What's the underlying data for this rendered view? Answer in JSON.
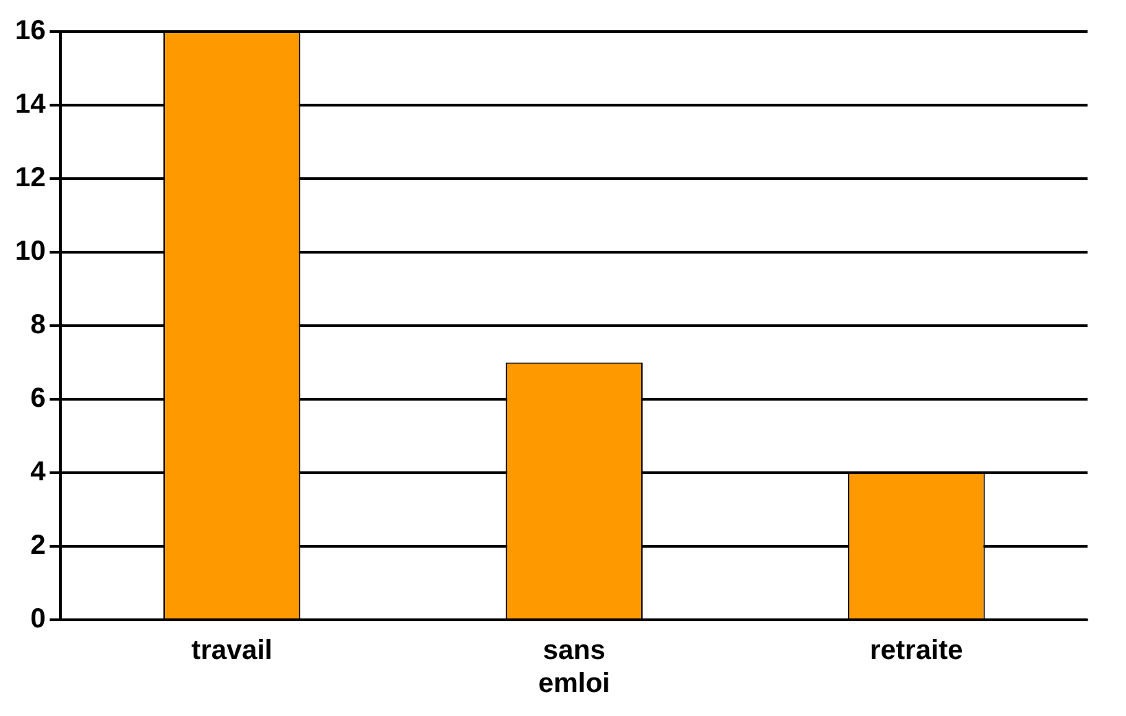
{
  "chart_data": {
    "type": "bar",
    "categories": [
      "travail",
      "sans emloi",
      "retraite"
    ],
    "values": [
      16,
      7,
      4
    ],
    "color": "#ff9900",
    "ylim": [
      0,
      16
    ],
    "yticks": [
      0,
      2,
      4,
      6,
      8,
      10,
      12,
      14,
      16
    ],
    "grid": "y"
  }
}
